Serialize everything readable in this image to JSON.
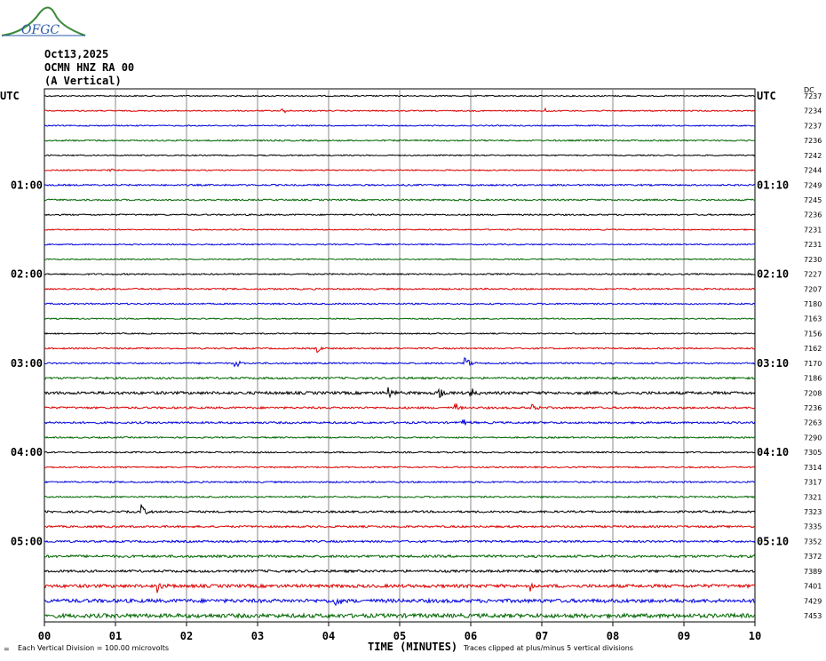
{
  "header": {
    "logo_text": "OFGC",
    "date": "Oct13,2025",
    "station": "OCMN HNZ RA 00",
    "component": "(A Vertical)",
    "utc_left": "UTC",
    "utc_right": "UTC",
    "dc_label": "DC"
  },
  "footer": {
    "x_axis_title": "TIME (MINUTES)",
    "division_note": "Each Vertical Division =  100.00 microvolts",
    "clip_note": "Traces clipped at plus/minus 5 vertical divisions",
    "corner_mark": "="
  },
  "colors": {
    "black": "#000000",
    "red": "#dd0000",
    "blue": "#0000dd",
    "green": "#006600",
    "grid": "#888888"
  },
  "chart_data": {
    "type": "line",
    "title": "",
    "xlabel": "TIME (MINUTES)",
    "ylabel": "",
    "x_ticks": [
      "00",
      "01",
      "02",
      "03",
      "04",
      "05",
      "06",
      "07",
      "08",
      "09",
      "10"
    ],
    "xlim": [
      0,
      10
    ],
    "trace_color_cycle": [
      "black",
      "red",
      "blue",
      "green"
    ],
    "left_time_labels": [
      {
        "trace": 0,
        "label": "UTC"
      },
      {
        "trace": 6,
        "label": "01:00"
      },
      {
        "trace": 12,
        "label": "02:00"
      },
      {
        "trace": 18,
        "label": "03:00"
      },
      {
        "trace": 24,
        "label": "04:00"
      },
      {
        "trace": 30,
        "label": "05:00"
      }
    ],
    "right_time_labels": [
      {
        "trace": 0,
        "label": "UTC"
      },
      {
        "trace": 6,
        "label": "01:10"
      },
      {
        "trace": 12,
        "label": "02:10"
      },
      {
        "trace": 18,
        "label": "03:10"
      },
      {
        "trace": 24,
        "label": "04:10"
      },
      {
        "trace": 30,
        "label": "05:10"
      }
    ],
    "dc_values": [
      "7237",
      "7234",
      "7237",
      "7236",
      "7242",
      "7244",
      "7249",
      "7245",
      "7236",
      "7231",
      "7231",
      "7230",
      "7227",
      "7207",
      "7180",
      "7163",
      "7156",
      "7162",
      "7170",
      "7186",
      "7208",
      "7236",
      "7263",
      "7290",
      "7305",
      "7314",
      "7317",
      "7321",
      "7323",
      "7335",
      "7352",
      "7372",
      "7389",
      "7401",
      "7429",
      "7453"
    ],
    "noise_levels": [
      1.5,
      1.5,
      1.5,
      1.8,
      1.5,
      1.5,
      2,
      2,
      1.8,
      1.5,
      1.5,
      1.5,
      1.8,
      2,
      1.8,
      1.5,
      1.5,
      1.8,
      2,
      2.5,
      3.5,
      2.5,
      2.5,
      1.8,
      1.8,
      1.8,
      2,
      2,
      2.5,
      2.5,
      2.5,
      3,
      3,
      4,
      4.5,
      5
    ],
    "events": [
      {
        "trace": 1,
        "minute": 3.35,
        "amp": 3
      },
      {
        "trace": 1,
        "minute": 7.05,
        "amp": 3
      },
      {
        "trace": 5,
        "minute": 0.9,
        "amp": 3
      },
      {
        "trace": 17,
        "minute": 3.85,
        "amp": 4
      },
      {
        "trace": 18,
        "minute": 2.68,
        "amp": 6
      },
      {
        "trace": 18,
        "minute": 5.92,
        "amp": 10
      },
      {
        "trace": 20,
        "minute": 4.85,
        "amp": 9
      },
      {
        "trace": 20,
        "minute": 5.55,
        "amp": 7
      },
      {
        "trace": 20,
        "minute": 6.0,
        "amp": 7
      },
      {
        "trace": 21,
        "minute": 5.78,
        "amp": 6
      },
      {
        "trace": 21,
        "minute": 6.87,
        "amp": 6
      },
      {
        "trace": 22,
        "minute": 5.9,
        "amp": 5
      },
      {
        "trace": 28,
        "minute": 1.37,
        "amp": 8
      },
      {
        "trace": 33,
        "minute": 1.6,
        "amp": 7
      },
      {
        "trace": 33,
        "minute": 6.85,
        "amp": 5
      },
      {
        "trace": 34,
        "minute": 4.1,
        "amp": 6
      }
    ],
    "grid": true
  }
}
